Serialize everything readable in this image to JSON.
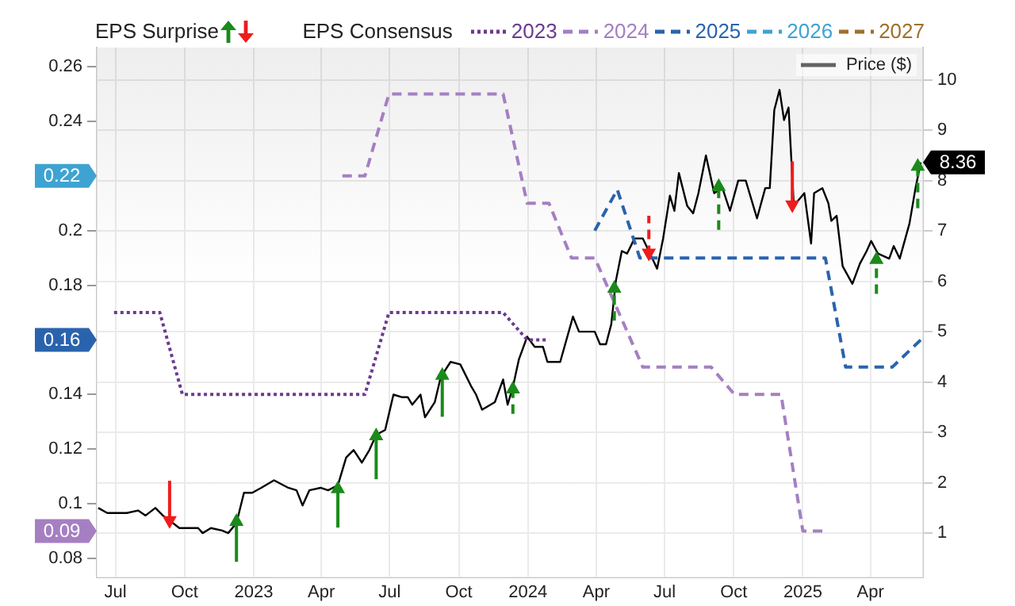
{
  "chart_data": {
    "type": "line",
    "legend": "top",
    "legend_title": "EPS Consensus",
    "grid": true,
    "marker": "none",
    "xlim": [
      "2022-06-06",
      "2025-06-10"
    ],
    "xticks": [
      {
        "value": "2022-07",
        "label": "Jul"
      },
      {
        "value": "2022-10",
        "label": "Oct"
      },
      {
        "value": "2023-01",
        "label": "2023"
      },
      {
        "value": "2023-04",
        "label": "Apr"
      },
      {
        "value": "2023-07",
        "label": "Jul"
      },
      {
        "value": "2023-10",
        "label": "Oct"
      },
      {
        "value": "2024-01",
        "label": "2024"
      },
      {
        "value": "2024-04",
        "label": "Apr"
      },
      {
        "value": "2024-07",
        "label": "Jul"
      },
      {
        "value": "2024-10",
        "label": "Oct"
      },
      {
        "value": "2025-01",
        "label": "2025"
      },
      {
        "value": "2025-04",
        "label": "Apr"
      }
    ],
    "ylim": [
      0.073,
      0.267
    ],
    "yticks": [
      0.08,
      {
        "value": 0.09,
        "label": "0.09"
      },
      0.1,
      0.12,
      0.14,
      {
        "value": 0.16,
        "label": "0.16"
      },
      0.18,
      0.2,
      {
        "value": 0.22,
        "label": "0.22"
      },
      0.24,
      0.26
    ],
    "annotations": [
      "EPS Surprise"
    ],
    "y2lim": [
      0.12,
      10.64
    ],
    "y2ticks": [
      1,
      2,
      3,
      4,
      5,
      6,
      7,
      8,
      9,
      10
    ],
    "series": [
      {
        "type": "scatter",
        "axis": "y2",
        "color": "#1a8a1a",
        "line_style": "solid",
        "marker": "triangle",
        "x": [
          "2022-12-09",
          "2023-04-23",
          "2023-06-13",
          "2023-09-09"
        ],
        "values": [
          1.27,
          1.92,
          2.97,
          4.17
        ],
        "errors": [
          [
            0.43,
            1.27
          ],
          [
            1.11,
            1.92
          ],
          [
            2.07,
            2.97
          ],
          [
            3.31,
            4.17
          ]
        ]
      },
      {
        "type": "scatter",
        "axis": "y2",
        "color": "#ee1c1c",
        "line_style": "solid",
        "marker": "triangle",
        "x": [
          "2022-09-11",
          "2024-12-18"
        ],
        "values": [
          1.21,
          7.48
        ],
        "errors": [
          [
            1.21,
            2.04
          ],
          [
            7.48,
            8.38
          ]
        ]
      },
      {
        "type": "scatter",
        "axis": "y2",
        "color": "#1a8a1a",
        "line_style": "dashed",
        "marker": "triangle",
        "x": [
          "2023-12-12",
          "2024-04-25",
          "2024-09-11",
          "2025-04-09",
          "2025-06-03"
        ],
        "values": [
          3.9,
          5.9,
          7.92,
          6.47,
          8.32
        ],
        "errors": [
          [
            3.37,
            3.9
          ],
          [
            5.22,
            5.9
          ],
          [
            7.02,
            7.92
          ],
          [
            5.75,
            6.47
          ],
          [
            7.45,
            8.32
          ]
        ]
      },
      {
        "type": "scatter",
        "axis": "y2",
        "color": "#ee1c1c",
        "line_style": "dashed",
        "marker": "triangle",
        "x": [
          "2024-06-10"
        ],
        "values": [
          6.52
        ],
        "errors": [
          [
            6.52,
            7.3
          ]
        ]
      },
      {
        "name": "2023",
        "color": "#6b3a8e",
        "line_style": "dotted",
        "x": [
          "2022-06-29",
          "2022-08-29",
          "2022-09-28",
          "2023-05-29",
          "2023-06-30",
          "2023-11-29",
          "2023-12-31",
          "2024-01-29"
        ],
        "values": [
          0.17,
          0.17,
          0.14,
          0.14,
          0.17,
          0.17,
          0.16,
          0.16
        ]
      },
      {
        "name": "2024",
        "color": "#a57fc2",
        "line_style": "dashed",
        "x": [
          "2023-04-29",
          "2023-05-29",
          "2023-06-30",
          "2023-11-29",
          "2023-12-31",
          "2024-01-29",
          "2024-02-28",
          "2024-03-30",
          "2024-06-02",
          "2024-09-01",
          "2024-10-02",
          "2024-12-03",
          "2025-01-01",
          "2025-01-31"
        ],
        "values": [
          0.22,
          0.22,
          0.25,
          0.25,
          0.21,
          0.21,
          0.19,
          0.19,
          0.15,
          0.15,
          0.14,
          0.14,
          0.09,
          0.09
        ]
      },
      {
        "name": "2025",
        "color": "#2a63ad",
        "line_style": "dashed",
        "x": [
          "2024-03-30",
          "2024-04-29",
          "2024-05-29",
          "2025-01-31",
          "2025-02-27",
          "2025-04-30",
          "2025-06-07"
        ],
        "values": [
          0.2,
          0.215,
          0.19,
          0.19,
          0.15,
          0.15,
          0.16
        ]
      },
      {
        "name": "2026",
        "color": "#3ea3d2",
        "line_style": "dashed"
      },
      {
        "name": "2027",
        "color": "#a0702a",
        "line_style": "dashed"
      },
      {
        "name": "Price ($)",
        "axis": "y2",
        "color": "#000000",
        "line_style": "solid",
        "x": [
          "2022-06-08",
          "2022-06-20",
          "2022-07-16",
          "2022-07-31",
          "2022-08-10",
          "2022-08-23",
          "2022-09-02",
          "2022-09-11",
          "2022-09-24",
          "2022-10-19",
          "2022-10-25",
          "2022-11-05",
          "2022-11-20",
          "2022-11-28",
          "2022-12-09",
          "2022-12-19",
          "2022-12-30",
          "2023-01-11",
          "2023-01-28",
          "2023-02-16",
          "2023-02-27",
          "2023-03-07",
          "2023-03-16",
          "2023-03-31",
          "2023-04-10",
          "2023-04-23",
          "2023-05-04",
          "2023-05-14",
          "2023-05-25",
          "2023-06-04",
          "2023-06-13",
          "2023-06-25",
          "2023-07-06",
          "2023-07-17",
          "2023-07-25",
          "2023-07-31",
          "2023-08-11",
          "2023-08-17",
          "2023-08-30",
          "2023-09-07",
          "2023-09-20",
          "2023-10-03",
          "2023-10-18",
          "2023-10-24",
          "2023-11-01",
          "2023-11-18",
          "2023-11-29",
          "2023-12-05",
          "2023-12-12",
          "2023-12-20",
          "2023-12-31",
          "2024-01-10",
          "2024-01-21",
          "2024-01-27",
          "2024-02-13",
          "2024-03-01",
          "2024-03-09",
          "2024-03-20",
          "2024-03-30",
          "2024-04-06",
          "2024-04-14",
          "2024-04-21",
          "2024-04-27",
          "2024-05-05",
          "2024-05-12",
          "2024-05-22",
          "2024-06-02",
          "2024-06-10",
          "2024-06-21",
          "2024-06-29",
          "2024-07-08",
          "2024-07-14",
          "2024-07-20",
          "2024-07-31",
          "2024-08-08",
          "2024-08-15",
          "2024-08-25",
          "2024-09-05",
          "2024-09-16",
          "2024-09-26",
          "2024-10-07",
          "2024-10-17",
          "2024-11-01",
          "2024-11-12",
          "2024-11-18",
          "2024-11-24",
          "2024-12-01",
          "2024-12-07",
          "2024-12-13",
          "2024-12-20",
          "2025-01-03",
          "2025-01-12",
          "2025-01-16",
          "2025-01-27",
          "2025-02-04",
          "2025-02-08",
          "2025-02-15",
          "2025-02-23",
          "2025-03-08",
          "2025-03-18",
          "2025-03-27",
          "2025-04-02",
          "2025-04-11",
          "2025-04-26",
          "2025-05-02",
          "2025-05-10",
          "2025-05-23",
          "2025-05-31",
          "2025-06-07"
        ],
        "values": [
          1.5,
          1.4,
          1.4,
          1.45,
          1.35,
          1.5,
          1.35,
          1.25,
          1.1,
          1.1,
          1.0,
          1.1,
          1.05,
          1.0,
          1.2,
          1.8,
          1.8,
          1.9,
          2.05,
          1.9,
          1.85,
          1.55,
          1.85,
          1.9,
          1.85,
          1.95,
          2.5,
          2.65,
          2.4,
          2.65,
          2.95,
          3.05,
          3.75,
          3.7,
          3.7,
          3.55,
          3.75,
          3.3,
          3.6,
          4.1,
          4.4,
          4.35,
          3.9,
          3.75,
          3.45,
          3.6,
          4.05,
          3.55,
          3.9,
          4.45,
          4.9,
          4.7,
          4.7,
          4.4,
          4.4,
          5.3,
          5.0,
          5.0,
          5.0,
          4.75,
          4.75,
          5.15,
          6.0,
          6.6,
          6.55,
          6.85,
          6.85,
          6.6,
          6.25,
          6.85,
          7.7,
          7.4,
          8.15,
          7.5,
          7.35,
          7.75,
          8.5,
          7.75,
          7.85,
          7.4,
          8.0,
          8.0,
          7.25,
          7.85,
          7.85,
          9.4,
          9.8,
          9.2,
          9.45,
          7.5,
          7.75,
          6.75,
          7.75,
          7.85,
          7.55,
          7.2,
          7.3,
          6.3,
          5.95,
          6.35,
          6.6,
          6.8,
          6.55,
          6.45,
          6.7,
          6.45,
          7.15,
          7.85,
          8.36
        ],
        "value_labels": [
          null,
          null,
          null,
          null,
          null,
          null,
          null,
          null,
          null,
          null,
          null,
          null,
          null,
          null,
          null,
          null,
          null,
          null,
          null,
          null,
          null,
          null,
          null,
          null,
          null,
          null,
          null,
          null,
          null,
          null,
          null,
          null,
          null,
          null,
          null,
          null,
          null,
          null,
          null,
          null,
          null,
          null,
          null,
          null,
          null,
          null,
          null,
          null,
          null,
          null,
          null,
          null,
          null,
          null,
          null,
          null,
          null,
          null,
          null,
          null,
          null,
          null,
          null,
          null,
          null,
          null,
          null,
          null,
          null,
          null,
          null,
          null,
          null,
          null,
          null,
          null,
          null,
          null,
          null,
          null,
          null,
          null,
          null,
          null,
          null,
          null,
          null,
          null,
          null,
          null,
          null,
          null,
          null,
          null,
          null,
          null,
          null,
          null,
          null,
          null,
          null,
          null,
          null,
          null,
          null,
          null,
          null,
          null,
          "8.36"
        ]
      }
    ]
  }
}
